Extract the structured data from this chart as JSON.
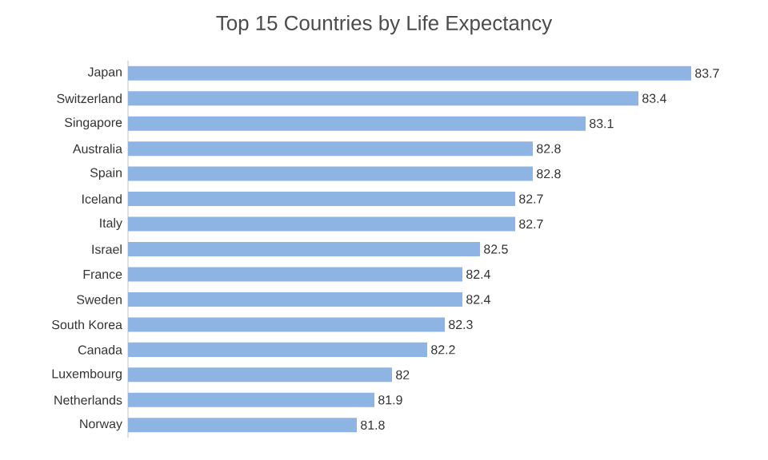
{
  "chart_data": {
    "type": "bar",
    "orientation": "horizontal",
    "title": "Top 15 Countries by Life Expectancy",
    "categories": [
      "Japan",
      "Switzerland",
      "Singapore",
      "Australia",
      "Spain",
      "Iceland",
      "Italy",
      "Israel",
      "France",
      "Sweden",
      "South Korea",
      "Canada",
      "Luxembourg",
      "Netherlands",
      "Norway"
    ],
    "values": [
      83.7,
      83.4,
      83.1,
      82.8,
      82.8,
      82.7,
      82.7,
      82.5,
      82.4,
      82.4,
      82.3,
      82.2,
      82,
      81.9,
      81.8
    ],
    "color": "#8eb4e3",
    "xlim": [
      80.5,
      83.7
    ],
    "data_labels": true
  }
}
